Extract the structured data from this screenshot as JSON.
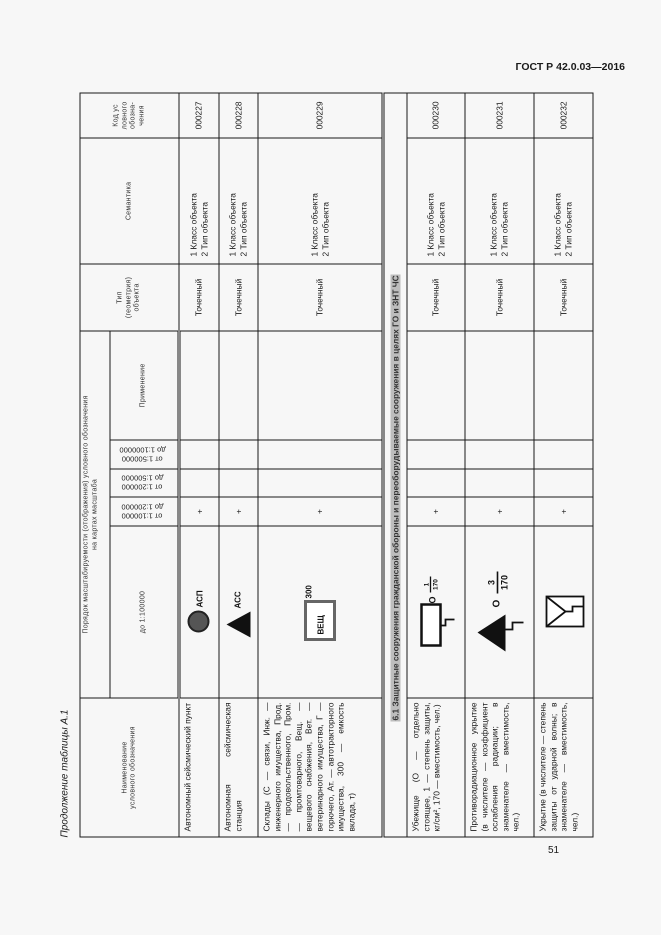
{
  "header": {
    "standard": "ГОСТ Р 42.0.03—2016"
  },
  "caption": "Продолжение таблицы А.1",
  "page_number": "51",
  "columns": {
    "name": "Наименование условного обозначения",
    "group": "Порядок масштабируемости (отображения) условного обозначения на картах масштаба",
    "scale0": "до 1:100000",
    "scale1": [
      "от 1:100000",
      "до 1:200000"
    ],
    "scale2": [
      "от 1:200000",
      "до 1:500000"
    ],
    "scale3": [
      "от 1:500000",
      "до 1:1000000"
    ],
    "note": "Применение",
    "type": [
      "Тип",
      "(геометрия)",
      "объекта"
    ],
    "semantics": "Семантика",
    "code": [
      "Код ус",
      "ловного",
      "обозна-",
      "чения"
    ]
  },
  "rows": [
    {
      "name": "Автономный сейсмический пункт",
      "symbol": {
        "icon": "grey-circle",
        "label": "АСП"
      },
      "scale1": "+",
      "type": "Точечный",
      "semantics": [
        "1 Класс объекта",
        "2 Тип объекта"
      ],
      "code": "000227"
    },
    {
      "name": "Автономная сейсмическая станция",
      "symbol": {
        "icon": "black-triangle",
        "label": "АСС"
      },
      "scale1": "+",
      "type": "Точечный",
      "semantics": [
        "1 Класс объекта",
        "2 Тип объекта"
      ],
      "code": "000228"
    },
    {
      "name": "Склады (С — связи, Инж. — инженерного имущества, Прод. — продовольственного, Пром. — промтоварного, Вещ. — вещевого снабжения, Вет. — ветеринарного имущества, Г — горючего, Ат. — автотракторного имущества, 300 — емкость вклада, т)",
      "symbol": {
        "icon": "warehouse-box",
        "label": "ВЕЩ",
        "value": "300"
      },
      "scale1": "+",
      "type": "Точечный",
      "semantics": [
        "1 Класс объекта",
        "2 Тип объекта"
      ],
      "code": "000229"
    }
  ],
  "section": "6.1 Защитные сооружения гражданской обороны и переоборудываемые сооружения в целях ГО и ЗНТ ЧС",
  "rows2": [
    {
      "name": "Убежище (О — отдельно стоящее, 1 — степень защиты, кг/см², 170 — вместимость, чел.)",
      "symbol": {
        "icon": "shelter-rectangle",
        "letter": "О",
        "numerator": "1",
        "denominator": "170"
      },
      "scale1": "+",
      "type": "Точечный",
      "semantics": [
        "1 Класс объекта",
        "2 Тип объекта"
      ],
      "code": "000230"
    },
    {
      "name": "Противорадиационное укрытие (в числителе — коэффициент ослабления радиации; в знаменателе — вместимость, чел.)",
      "symbol": {
        "icon": "radiation-shelter-triangle",
        "letter": "О",
        "numerator": "3",
        "denominator": "170"
      },
      "scale1": "+",
      "type": "Точечный",
      "semantics": [
        "1 Класс объекта",
        "2 Тип объекта"
      ],
      "code": "000231"
    },
    {
      "name": "Укрытие (в числителе — степень защиты от ударной волны; в знаменателе — вместимость, чел.)",
      "symbol": {
        "icon": "cover-square"
      },
      "scale1": "+",
      "type": "Точечный",
      "semantics": [
        "1 Класс объекта",
        "2 Тип объекта"
      ],
      "code": "000232"
    }
  ]
}
